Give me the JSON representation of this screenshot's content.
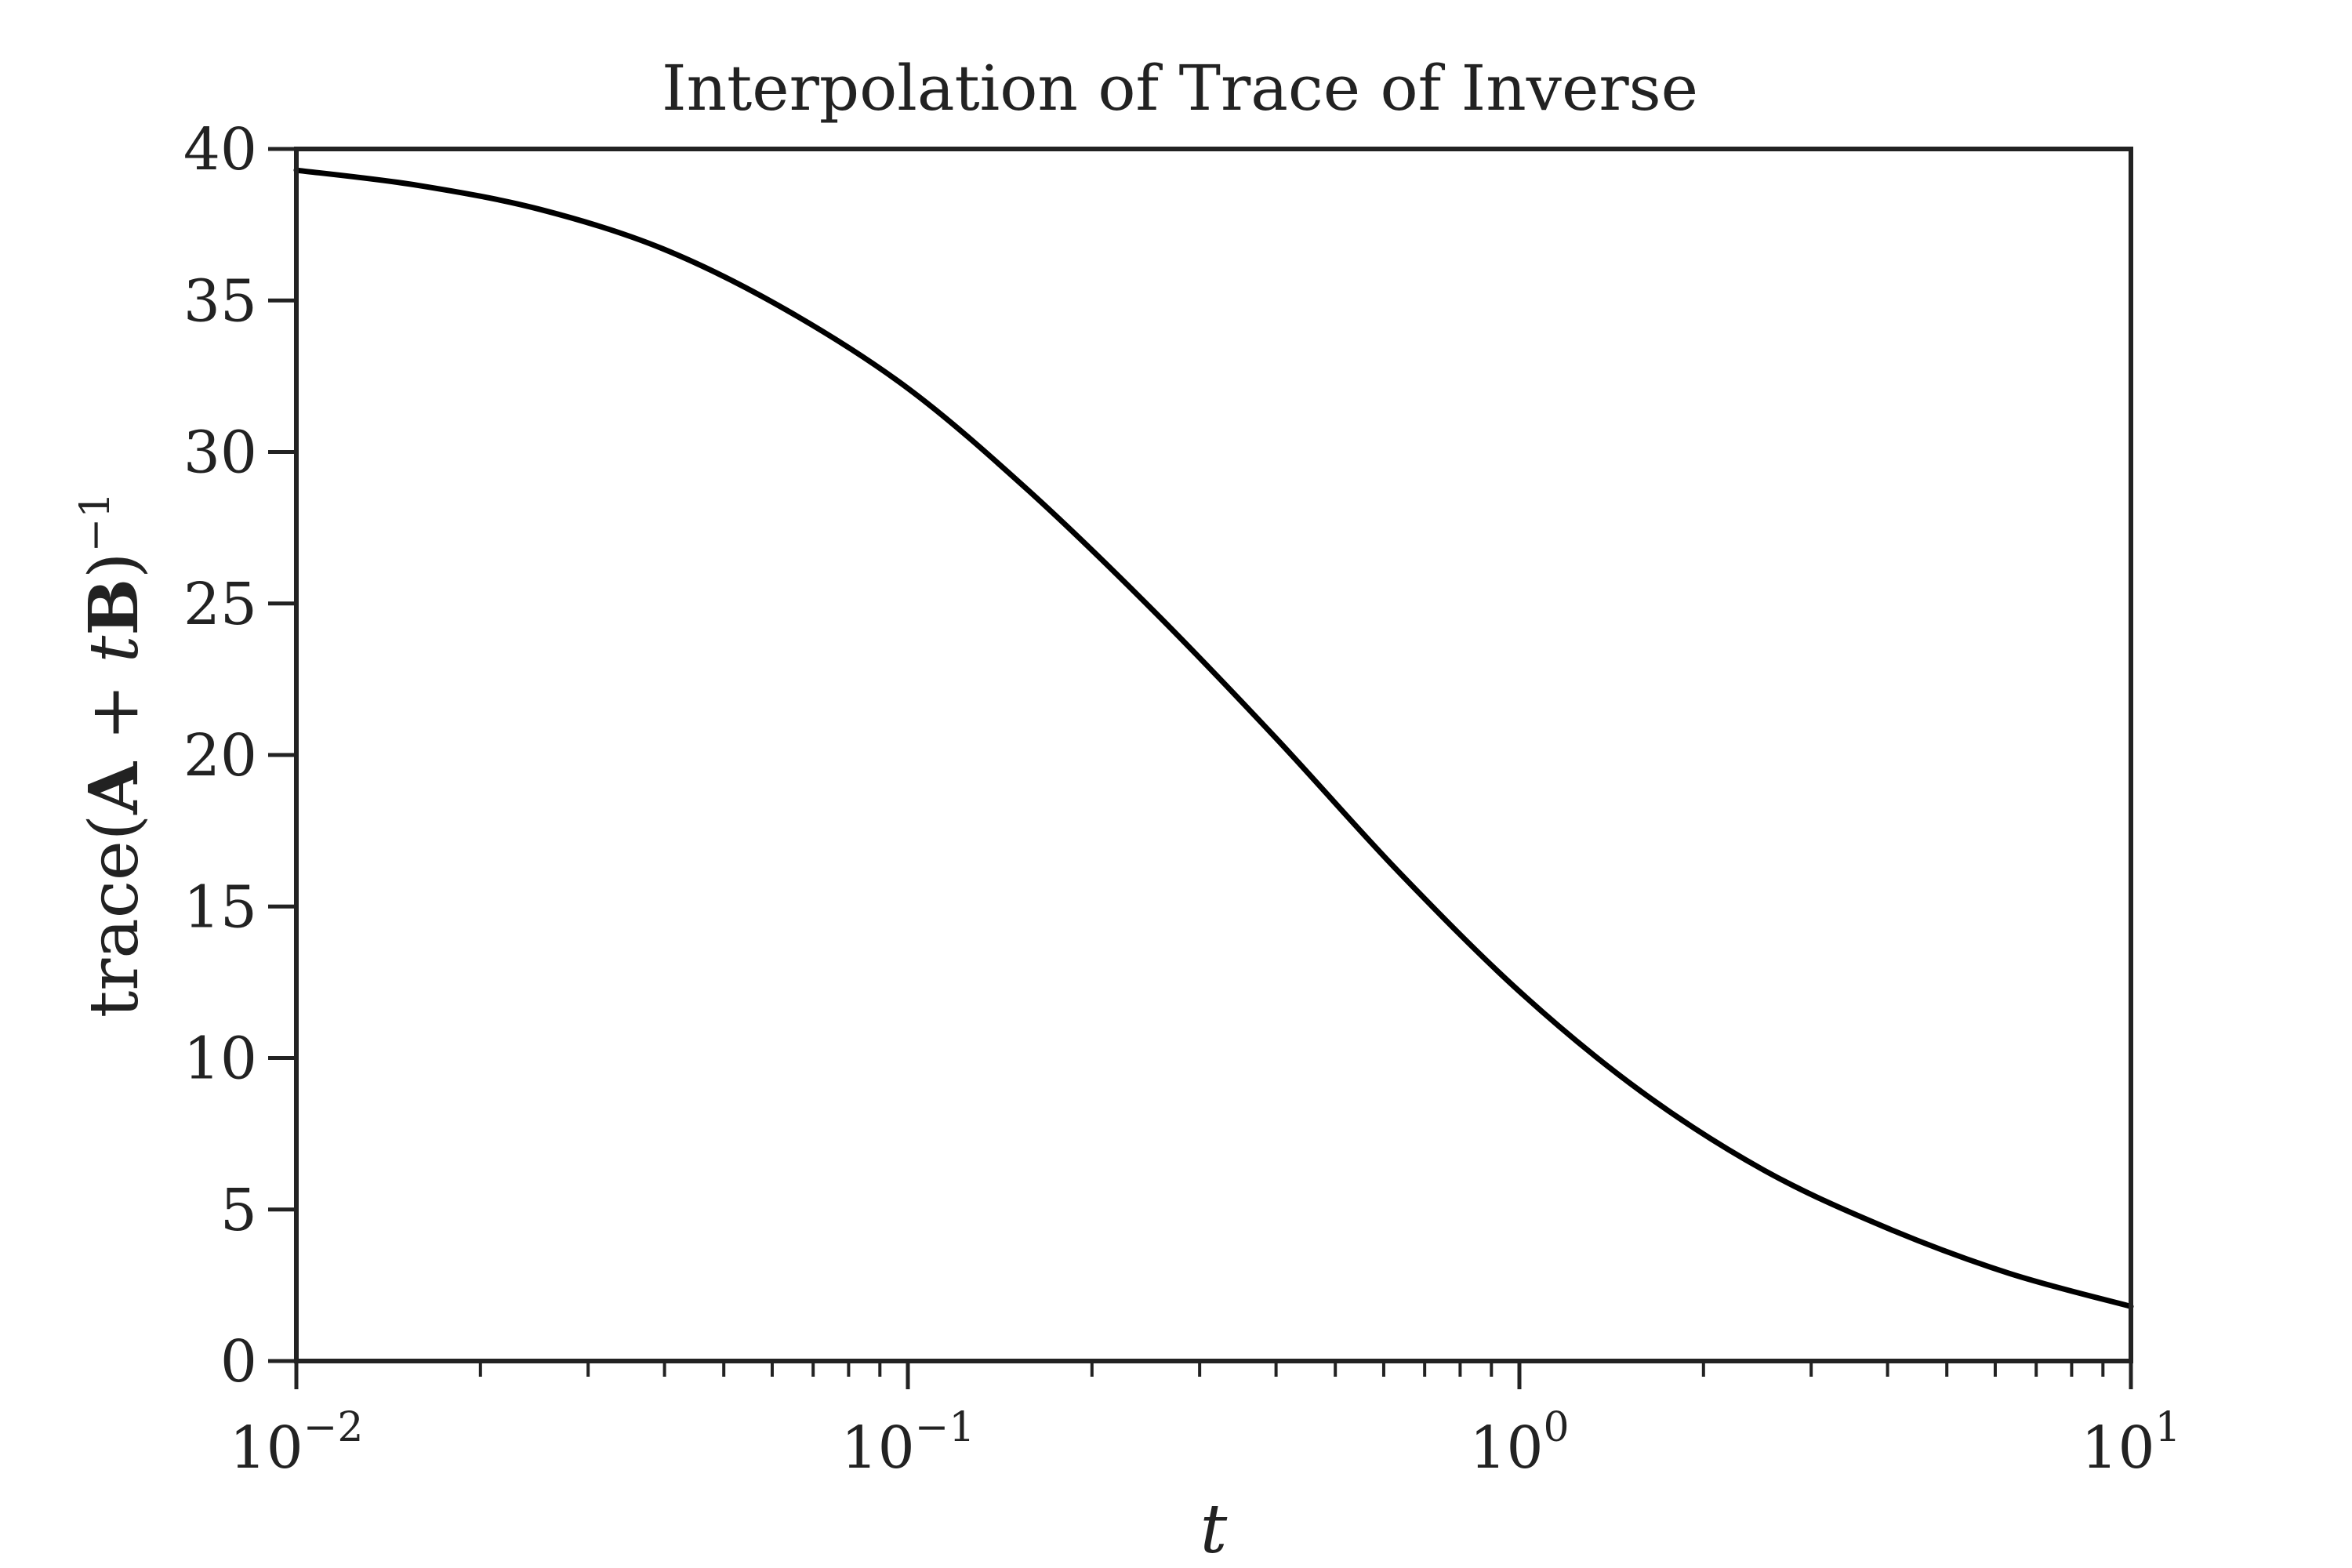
{
  "chart_data": {
    "type": "line",
    "title": "Interpolation of Trace of Inverse",
    "xlabel": "t",
    "ylabel": {
      "prefix": "trace(",
      "bold_a": "A",
      "plus": " + ",
      "italic_t": "t",
      "bold_b": "B",
      "close": ")",
      "exponent": "−1"
    },
    "xscale": "log",
    "xlim": [
      0.01,
      10
    ],
    "ylim": [
      0,
      40
    ],
    "grid": false,
    "x_ticks": [
      {
        "value": 0.01,
        "base": "10",
        "exp": "−2"
      },
      {
        "value": 0.1,
        "base": "10",
        "exp": "−1"
      },
      {
        "value": 1,
        "base": "10",
        "exp": "0"
      },
      {
        "value": 10,
        "base": "10",
        "exp": "1"
      }
    ],
    "y_ticks": [
      {
        "value": 0,
        "label": "0"
      },
      {
        "value": 5,
        "label": "5"
      },
      {
        "value": 10,
        "label": "10"
      },
      {
        "value": 15,
        "label": "15"
      },
      {
        "value": 20,
        "label": "20"
      },
      {
        "value": 25,
        "label": "25"
      },
      {
        "value": 30,
        "label": "30"
      },
      {
        "value": 35,
        "label": "35"
      },
      {
        "value": 40,
        "label": "40"
      }
    ],
    "series": [
      {
        "color": "#000000",
        "x": [
          0.01,
          0.0158,
          0.0251,
          0.0398,
          0.0631,
          0.1,
          0.158,
          0.251,
          0.398,
          0.631,
          1.0,
          1.58,
          2.51,
          3.98,
          6.31,
          10.0
        ],
        "y": [
          39.3,
          38.8,
          38.0,
          36.7,
          34.7,
          32.1,
          28.7,
          24.8,
          20.6,
          16.2,
          12.2,
          8.9,
          6.3,
          4.4,
          2.9,
          1.8
        ]
      }
    ],
    "colors": {
      "axes": "#222222",
      "line": "#000000",
      "background": "#ffffff"
    }
  }
}
